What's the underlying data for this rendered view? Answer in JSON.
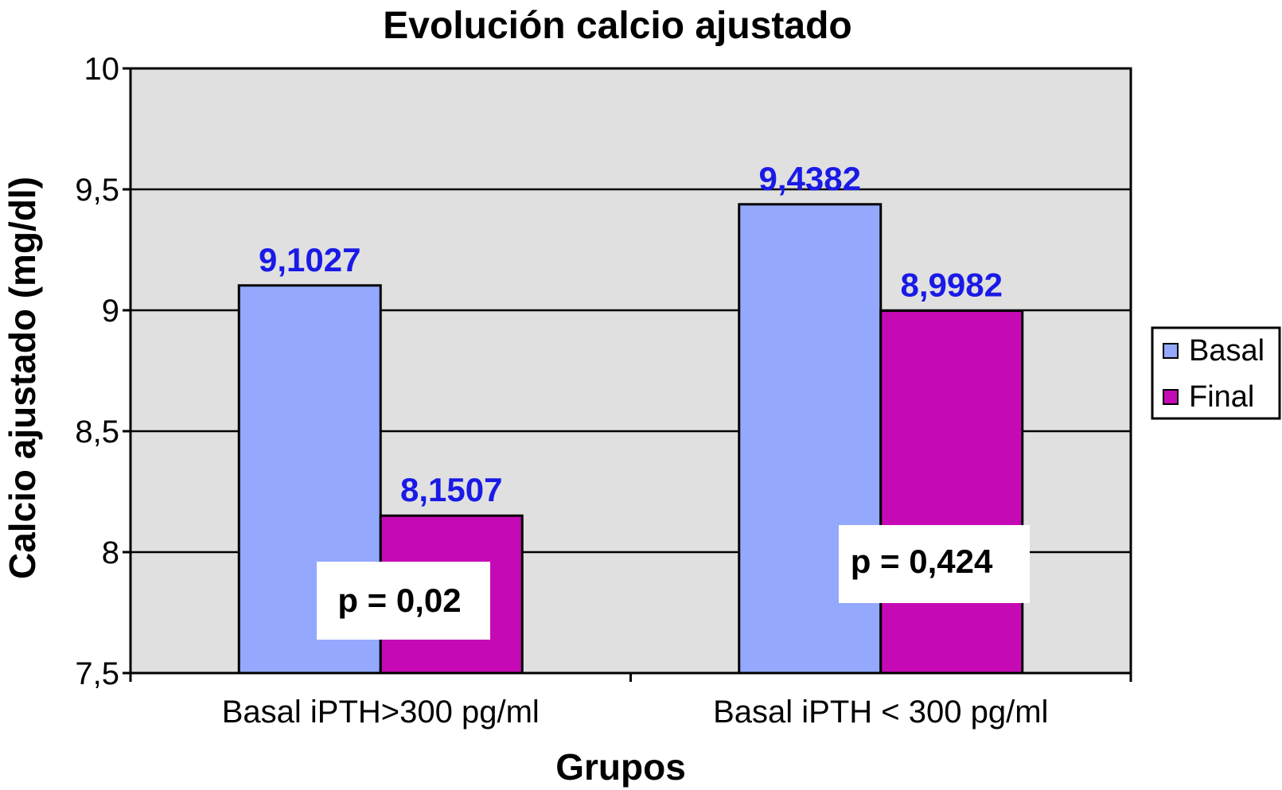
{
  "chart_data": {
    "type": "bar",
    "title": "Evolución calcio ajustado",
    "xlabel": "Grupos",
    "ylabel": "Calcio ajustado (mg/dl)",
    "categories": [
      "Basal iPTH>300 pg/ml",
      "Basal iPTH < 300 pg/ml"
    ],
    "series": [
      {
        "name": "Basal",
        "values": [
          9.1027,
          9.4382
        ],
        "labels": [
          "9,1027",
          "9,4382"
        ],
        "color": "#94a9fd"
      },
      {
        "name": "Final",
        "values": [
          8.1507,
          8.9982
        ],
        "labels": [
          "8,1507",
          "8,9982"
        ],
        "color": "#c50ab5"
      }
    ],
    "ylim": [
      7.5,
      10
    ],
    "yticks": [
      7.5,
      8,
      8.5,
      9,
      9.5,
      10
    ],
    "ytick_labels": [
      "7,5",
      "8",
      "8,5",
      "9",
      "9,5",
      "10"
    ],
    "annotations": [
      "p = 0,02",
      "p = 0,424"
    ],
    "grid": true,
    "legend_position": "right",
    "plot_background": "#e0e0e0",
    "data_label_color": "#1a1ae6"
  }
}
